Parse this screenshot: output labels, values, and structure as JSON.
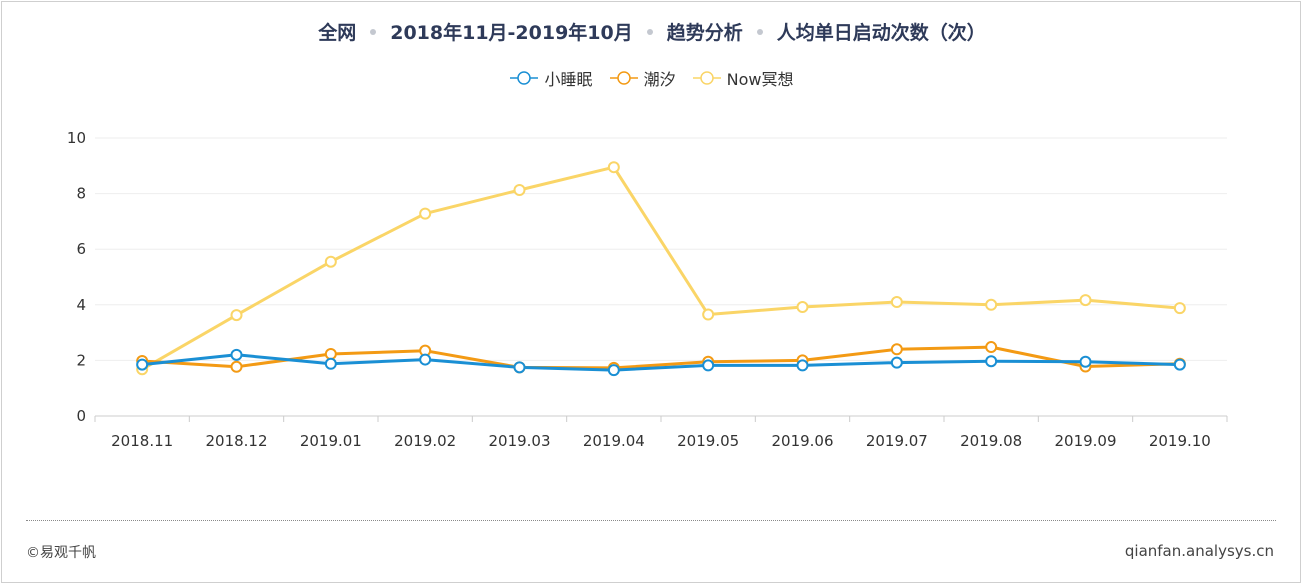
{
  "chart_data": {
    "type": "line",
    "title_parts": [
      "全网",
      "2018年11月-2019年10月",
      "趋势分析",
      "人均单日启动次数（次）"
    ],
    "categories": [
      "2018.11",
      "2018.12",
      "2019.01",
      "2019.02",
      "2019.03",
      "2019.04",
      "2019.05",
      "2019.06",
      "2019.07",
      "2019.08",
      "2019.09",
      "2019.10"
    ],
    "ylim": [
      0,
      10
    ],
    "yticks": [
      0,
      2,
      4,
      6,
      8,
      10
    ],
    "grid": true,
    "legend_position": "top-center",
    "series": [
      {
        "name": "小睡眠",
        "color": "#1a8fd4",
        "values": [
          1.85,
          2.2,
          1.88,
          2.03,
          1.75,
          1.65,
          1.82,
          1.82,
          1.92,
          1.97,
          1.95,
          1.85
        ]
      },
      {
        "name": "潮汐",
        "color": "#f39a14",
        "values": [
          1.98,
          1.77,
          2.23,
          2.35,
          1.75,
          1.73,
          1.95,
          2.0,
          2.4,
          2.48,
          1.78,
          1.88
        ]
      },
      {
        "name": "Now冥想",
        "color": "#fad567",
        "values": [
          1.68,
          3.63,
          5.55,
          7.28,
          8.13,
          8.95,
          3.65,
          3.92,
          4.1,
          4.0,
          4.17,
          3.88
        ]
      }
    ]
  },
  "footer": {
    "copyright": "©易观千帆",
    "site": "qianfan.analysys.cn"
  }
}
